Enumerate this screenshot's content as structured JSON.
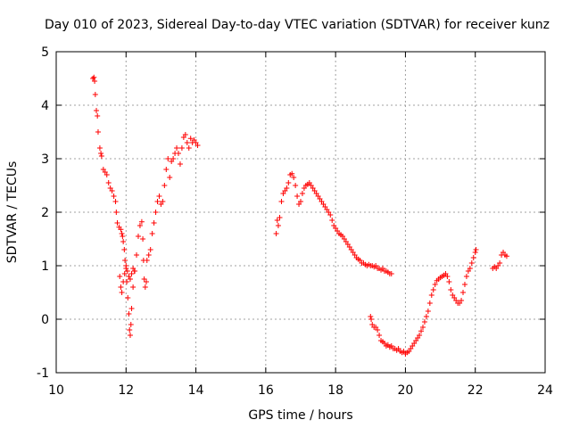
{
  "chart_data": {
    "type": "scatter",
    "title": "Day 010 of 2023, Sidereal Day-to-day VTEC variation (SDTVAR) for receiver kunz",
    "xlabel": "GPS time / hours",
    "ylabel": "SDTVAR / TECUs",
    "xlim": [
      10,
      24
    ],
    "ylim": [
      -1,
      5
    ],
    "x_ticks": [
      10,
      12,
      14,
      16,
      18,
      20,
      22,
      24
    ],
    "x_tick_labels": [
      "10",
      "12",
      "14",
      "16",
      "18",
      "20",
      "22",
      "24"
    ],
    "y_ticks": [
      -1,
      0,
      1,
      2,
      3,
      4,
      5
    ],
    "y_tick_labels": [
      "-1",
      "0",
      "1",
      "2",
      "3",
      "4",
      "5"
    ],
    "grid": true,
    "marker": "plus",
    "color": "#ff0000",
    "series": [
      {
        "name": "SDTVAR",
        "points": [
          [
            11.05,
            4.5
          ],
          [
            11.08,
            4.52
          ],
          [
            11.1,
            4.45
          ],
          [
            11.12,
            4.2
          ],
          [
            11.15,
            3.9
          ],
          [
            11.18,
            3.8
          ],
          [
            11.2,
            3.5
          ],
          [
            11.25,
            3.2
          ],
          [
            11.28,
            3.1
          ],
          [
            11.3,
            3.05
          ],
          [
            11.35,
            2.8
          ],
          [
            11.4,
            2.75
          ],
          [
            11.45,
            2.7
          ],
          [
            11.5,
            2.55
          ],
          [
            11.55,
            2.45
          ],
          [
            11.6,
            2.4
          ],
          [
            11.65,
            2.3
          ],
          [
            11.7,
            2.2
          ],
          [
            11.72,
            2.0
          ],
          [
            11.75,
            1.8
          ],
          [
            11.8,
            1.72
          ],
          [
            11.85,
            1.68
          ],
          [
            11.88,
            1.6
          ],
          [
            11.9,
            1.55
          ],
          [
            11.92,
            1.45
          ],
          [
            11.95,
            1.3
          ],
          [
            11.97,
            1.1
          ],
          [
            12.0,
            0.95
          ],
          [
            12.02,
            0.7
          ],
          [
            12.05,
            0.4
          ],
          [
            12.08,
            0.1
          ],
          [
            12.1,
            -0.2
          ],
          [
            12.12,
            -0.3
          ],
          [
            12.14,
            -0.1
          ],
          [
            12.16,
            0.2
          ],
          [
            12.2,
            0.6
          ],
          [
            12.25,
            0.9
          ],
          [
            12.3,
            1.2
          ],
          [
            12.35,
            1.55
          ],
          [
            12.4,
            1.75
          ],
          [
            12.45,
            1.82
          ],
          [
            12.48,
            1.5
          ],
          [
            12.5,
            1.1
          ],
          [
            12.52,
            0.75
          ],
          [
            12.55,
            0.6
          ],
          [
            12.58,
            0.7
          ],
          [
            12.6,
            1.1
          ],
          [
            12.65,
            1.2
          ],
          [
            12.7,
            1.3
          ],
          [
            12.75,
            1.6
          ],
          [
            12.8,
            1.8
          ],
          [
            12.85,
            2.0
          ],
          [
            12.9,
            2.2
          ],
          [
            12.95,
            2.3
          ],
          [
            13.0,
            2.15
          ],
          [
            13.05,
            2.2
          ],
          [
            13.1,
            2.5
          ],
          [
            13.15,
            2.8
          ],
          [
            13.2,
            3.0
          ],
          [
            13.25,
            2.65
          ],
          [
            13.3,
            2.95
          ],
          [
            13.35,
            3.0
          ],
          [
            13.4,
            3.1
          ],
          [
            13.45,
            3.2
          ],
          [
            13.5,
            3.1
          ],
          [
            13.55,
            2.9
          ],
          [
            13.6,
            3.2
          ],
          [
            13.65,
            3.4
          ],
          [
            13.7,
            3.45
          ],
          [
            13.75,
            3.3
          ],
          [
            13.8,
            3.2
          ],
          [
            13.85,
            3.38
          ],
          [
            13.9,
            3.3
          ],
          [
            13.95,
            3.35
          ],
          [
            14.0,
            3.3
          ],
          [
            14.05,
            3.25
          ],
          [
            11.82,
            0.8
          ],
          [
            11.85,
            0.6
          ],
          [
            11.88,
            0.5
          ],
          [
            11.92,
            0.7
          ],
          [
            11.96,
            0.85
          ],
          [
            12.0,
            1.0
          ],
          [
            12.04,
            0.9
          ],
          [
            12.08,
            0.8
          ],
          [
            12.12,
            0.75
          ],
          [
            12.16,
            0.85
          ],
          [
            12.2,
            0.95
          ],
          [
            12.24,
            0.9
          ],
          [
            16.3,
            1.6
          ],
          [
            16.33,
            1.85
          ],
          [
            16.36,
            1.75
          ],
          [
            16.4,
            1.9
          ],
          [
            16.45,
            2.2
          ],
          [
            16.5,
            2.35
          ],
          [
            16.55,
            2.4
          ],
          [
            16.6,
            2.45
          ],
          [
            16.65,
            2.55
          ],
          [
            16.7,
            2.7
          ],
          [
            16.75,
            2.72
          ],
          [
            16.8,
            2.65
          ],
          [
            16.85,
            2.5
          ],
          [
            16.9,
            2.3
          ],
          [
            16.95,
            2.15
          ],
          [
            17.0,
            2.2
          ],
          [
            17.05,
            2.35
          ],
          [
            17.1,
            2.45
          ],
          [
            17.15,
            2.5
          ],
          [
            17.2,
            2.52
          ],
          [
            17.25,
            2.55
          ],
          [
            17.3,
            2.5
          ],
          [
            17.35,
            2.45
          ],
          [
            17.4,
            2.4
          ],
          [
            17.45,
            2.35
          ],
          [
            17.5,
            2.3
          ],
          [
            17.55,
            2.25
          ],
          [
            17.6,
            2.2
          ],
          [
            17.65,
            2.15
          ],
          [
            17.7,
            2.1
          ],
          [
            17.75,
            2.05
          ],
          [
            17.8,
            2.0
          ],
          [
            17.85,
            1.95
          ],
          [
            17.9,
            1.85
          ],
          [
            17.95,
            1.75
          ],
          [
            18.0,
            1.7
          ],
          [
            18.05,
            1.65
          ],
          [
            18.1,
            1.6
          ],
          [
            18.15,
            1.58
          ],
          [
            18.2,
            1.55
          ],
          [
            18.25,
            1.5
          ],
          [
            18.3,
            1.45
          ],
          [
            18.35,
            1.4
          ],
          [
            18.4,
            1.35
          ],
          [
            18.45,
            1.3
          ],
          [
            18.5,
            1.25
          ],
          [
            18.55,
            1.2
          ],
          [
            18.6,
            1.15
          ],
          [
            18.65,
            1.12
          ],
          [
            18.7,
            1.1
          ],
          [
            18.75,
            1.05
          ],
          [
            18.8,
            1.05
          ],
          [
            18.85,
            1.02
          ],
          [
            18.9,
            1.0
          ],
          [
            18.95,
            1.02
          ],
          [
            19.0,
            1.0
          ],
          [
            19.05,
            1.0
          ],
          [
            19.1,
            0.98
          ],
          [
            19.15,
            1.0
          ],
          [
            19.2,
            0.95
          ],
          [
            19.25,
            0.95
          ],
          [
            19.3,
            0.92
          ],
          [
            19.35,
            0.95
          ],
          [
            19.4,
            0.9
          ],
          [
            19.45,
            0.9
          ],
          [
            19.5,
            0.88
          ],
          [
            19.55,
            0.85
          ],
          [
            19.6,
            0.85
          ],
          [
            19.0,
            0.05
          ],
          [
            19.02,
            0.0
          ],
          [
            19.05,
            -0.1
          ],
          [
            19.1,
            -0.15
          ],
          [
            19.15,
            -0.15
          ],
          [
            19.2,
            -0.2
          ],
          [
            19.25,
            -0.3
          ],
          [
            19.3,
            -0.4
          ],
          [
            19.35,
            -0.42
          ],
          [
            19.4,
            -0.45
          ],
          [
            19.45,
            -0.5
          ],
          [
            19.5,
            -0.48
          ],
          [
            19.55,
            -0.52
          ],
          [
            19.6,
            -0.5
          ],
          [
            19.65,
            -0.55
          ],
          [
            19.7,
            -0.55
          ],
          [
            19.75,
            -0.58
          ],
          [
            19.8,
            -0.55
          ],
          [
            19.85,
            -0.6
          ],
          [
            19.9,
            -0.62
          ],
          [
            19.95,
            -0.6
          ],
          [
            20.0,
            -0.65
          ],
          [
            20.05,
            -0.62
          ],
          [
            20.1,
            -0.6
          ],
          [
            20.15,
            -0.55
          ],
          [
            20.2,
            -0.5
          ],
          [
            20.25,
            -0.45
          ],
          [
            20.3,
            -0.4
          ],
          [
            20.35,
            -0.35
          ],
          [
            20.4,
            -0.3
          ],
          [
            20.45,
            -0.22
          ],
          [
            20.5,
            -0.15
          ],
          [
            20.55,
            -0.05
          ],
          [
            20.6,
            0.05
          ],
          [
            20.65,
            0.15
          ],
          [
            20.7,
            0.3
          ],
          [
            20.75,
            0.45
          ],
          [
            20.8,
            0.55
          ],
          [
            20.85,
            0.65
          ],
          [
            20.9,
            0.72
          ],
          [
            20.95,
            0.75
          ],
          [
            21.0,
            0.78
          ],
          [
            21.05,
            0.8
          ],
          [
            21.1,
            0.82
          ],
          [
            21.15,
            0.85
          ],
          [
            21.2,
            0.8
          ],
          [
            21.25,
            0.7
          ],
          [
            21.3,
            0.55
          ],
          [
            21.35,
            0.45
          ],
          [
            21.4,
            0.4
          ],
          [
            21.45,
            0.35
          ],
          [
            21.5,
            0.3
          ],
          [
            21.55,
            0.3
          ],
          [
            21.6,
            0.35
          ],
          [
            21.65,
            0.5
          ],
          [
            21.7,
            0.65
          ],
          [
            21.75,
            0.8
          ],
          [
            21.8,
            0.9
          ],
          [
            21.85,
            0.95
          ],
          [
            21.9,
            1.05
          ],
          [
            21.95,
            1.15
          ],
          [
            22.0,
            1.25
          ],
          [
            22.02,
            1.3
          ],
          [
            22.5,
            0.95
          ],
          [
            22.55,
            0.98
          ],
          [
            22.6,
            0.95
          ],
          [
            22.65,
            1.0
          ],
          [
            22.7,
            1.05
          ],
          [
            22.75,
            1.2
          ],
          [
            22.8,
            1.25
          ],
          [
            22.85,
            1.2
          ],
          [
            22.9,
            1.18
          ]
        ]
      }
    ]
  }
}
